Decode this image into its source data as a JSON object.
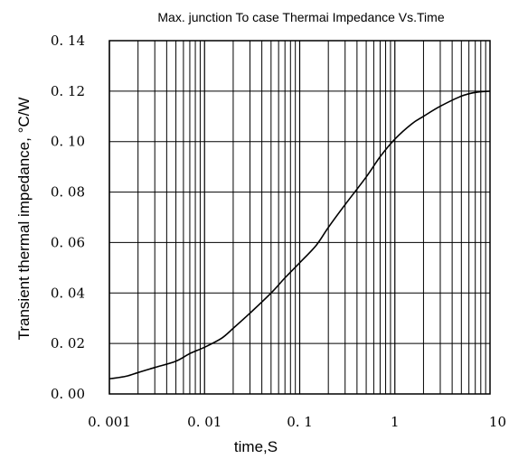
{
  "chart_data": {
    "type": "line",
    "title": "Max. junction To case Thermai Impedance Vs.Time",
    "xlabel": "time,S",
    "ylabel": "Transient thermal impedance, °C/W",
    "xscale": "log",
    "xlim": [
      0.001,
      10
    ],
    "ylim": [
      0,
      0.14
    ],
    "grid": true,
    "x_ticks": [
      0.001,
      0.01,
      0.1,
      1,
      10
    ],
    "x_tick_labels": [
      "0. 001",
      "0. 01",
      "0. 1",
      "1",
      "10"
    ],
    "y_ticks": [
      0,
      0.02,
      0.04,
      0.06,
      0.08,
      0.1,
      0.12,
      0.14
    ],
    "y_tick_labels": [
      "0. 00",
      "0. 02",
      "0. 04",
      "0. 06",
      "0. 08",
      "0. 10",
      "0. 12",
      "0. 14"
    ],
    "series": [
      {
        "color": "#000000",
        "x": [
          0.001,
          0.0015,
          0.002,
          0.003,
          0.005,
          0.007,
          0.01,
          0.015,
          0.02,
          0.03,
          0.05,
          0.07,
          0.1,
          0.15,
          0.2,
          0.3,
          0.5,
          0.7,
          1,
          1.5,
          2,
          3,
          5,
          7,
          10
        ],
        "y": [
          0.006,
          0.007,
          0.0085,
          0.0105,
          0.013,
          0.016,
          0.0185,
          0.022,
          0.026,
          0.032,
          0.04,
          0.046,
          0.052,
          0.059,
          0.066,
          0.075,
          0.086,
          0.094,
          0.101,
          0.107,
          0.11,
          0.114,
          0.118,
          0.1195,
          0.12
        ]
      }
    ]
  }
}
